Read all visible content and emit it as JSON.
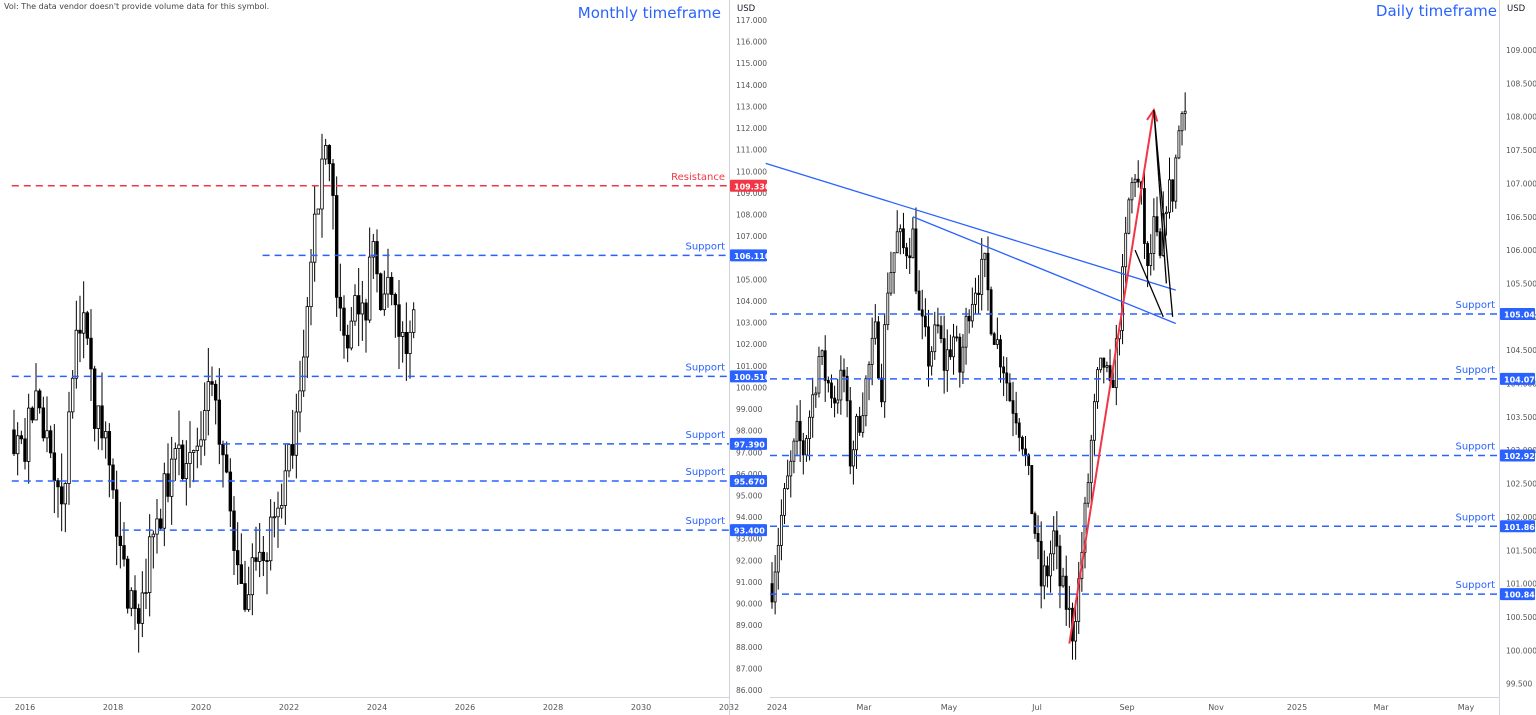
{
  "header": {
    "volume_note": "Vol: The data vendor doesn't provide volume data for this symbol.",
    "currency_label": "USD"
  },
  "colors": {
    "up": "#ffffff",
    "down": "#000000",
    "wick": "#000000",
    "support": "#2962ff",
    "resistance": "#f23645",
    "title": "#2962ff",
    "trendline": "#2962ff",
    "arrow": "#f23645",
    "wedge": "#000000"
  },
  "chart_data": [
    {
      "type": "candlestick",
      "title": "Monthly timeframe",
      "currency": "USD",
      "ylim": [
        85.5,
        117.5
      ],
      "xlim": [
        2015.7,
        2032
      ],
      "x_ticks": [
        "2016",
        "2018",
        "2020",
        "2022",
        "2024",
        "2026",
        "2028",
        "2030",
        "2032"
      ],
      "y_ticks": [
        "86.000",
        "87.000",
        "88.000",
        "89.000",
        "90.000",
        "91.000",
        "92.000",
        "93.000",
        "94.000",
        "95.000",
        "96.000",
        "97.000",
        "98.000",
        "99.000",
        "100.000",
        "101.000",
        "102.000",
        "103.000",
        "104.000",
        "105.000",
        "106.000",
        "107.000",
        "108.000",
        "109.000",
        "110.000",
        "111.000",
        "112.000",
        "113.000",
        "114.000",
        "115.000",
        "116.000",
        "117.000"
      ],
      "levels": [
        {
          "label": "Resistance",
          "value": 109.33,
          "tag": "109.330",
          "kind": "resistance",
          "start_x": 2015.7
        },
        {
          "label": "Support",
          "value": 106.11,
          "tag": "106.110",
          "kind": "support",
          "start_x": 2021.4
        },
        {
          "label": "Support",
          "value": 100.51,
          "tag": "100.510",
          "kind": "support",
          "start_x": 2015.7
        },
        {
          "label": "Support",
          "value": 97.39,
          "tag": "97.390",
          "kind": "support",
          "start_x": 2020.5
        },
        {
          "label": "Support",
          "value": 95.67,
          "tag": "95.670",
          "kind": "support",
          "start_x": 2015.7
        },
        {
          "label": "Support",
          "value": 93.4,
          "tag": "93.400",
          "kind": "support",
          "start_x": 2018.2
        }
      ],
      "path": [
        [
          2015.7,
          98.2
        ],
        [
          2016.0,
          97.2
        ],
        [
          2016.3,
          100.1
        ],
        [
          2016.6,
          95.8
        ],
        [
          2016.9,
          94.6
        ],
        [
          2017.1,
          101.5
        ],
        [
          2017.3,
          103.4
        ],
        [
          2017.6,
          98.5
        ],
        [
          2017.9,
          97.6
        ],
        [
          2018.1,
          92.9
        ],
        [
          2018.3,
          90.9
        ],
        [
          2018.5,
          88.7
        ],
        [
          2018.7,
          89.9
        ],
        [
          2018.9,
          93.1
        ],
        [
          2019.2,
          95.2
        ],
        [
          2019.5,
          97.0
        ],
        [
          2019.8,
          96.2
        ],
        [
          2020.0,
          97.8
        ],
        [
          2020.2,
          100.4
        ],
        [
          2020.5,
          96.6
        ],
        [
          2020.7,
          93.5
        ],
        [
          2020.9,
          92.0
        ],
        [
          2021.0,
          90.1
        ],
        [
          2021.2,
          92.4
        ],
        [
          2021.5,
          92.7
        ],
        [
          2021.7,
          93.6
        ],
        [
          2021.9,
          95.9
        ],
        [
          2022.1,
          97.2
        ],
        [
          2022.3,
          101.0
        ],
        [
          2022.5,
          105.4
        ],
        [
          2022.7,
          109.1
        ],
        [
          2022.8,
          113.0
        ],
        [
          2022.95,
          109.7
        ],
        [
          2023.1,
          104.3
        ],
        [
          2023.3,
          102.0
        ],
        [
          2023.5,
          104.5
        ],
        [
          2023.7,
          102.9
        ],
        [
          2023.9,
          106.3
        ],
        [
          2024.1,
          103.7
        ],
        [
          2024.3,
          104.9
        ],
        [
          2024.5,
          102.5
        ],
        [
          2024.7,
          100.9
        ],
        [
          2024.9,
          106.4
        ],
        [
          2025.05,
          108.3
        ]
      ],
      "candle_count": 110,
      "random_seed": 12
    },
    {
      "type": "candlestick",
      "title": "Daily timeframe",
      "currency": "USD",
      "ylim": [
        99.3,
        109.6
      ],
      "x_ticks": [
        "2024",
        "Mar",
        "May",
        "Jul",
        "Sep",
        "Nov",
        "2025",
        "Mar",
        "May"
      ],
      "y_ticks": [
        "99.500",
        "100.000",
        "100.500",
        "101.000",
        "101.500",
        "102.000",
        "102.500",
        "103.000",
        "103.500",
        "104.000",
        "104.500",
        "105.000",
        "105.500",
        "106.000",
        "106.500",
        "107.000",
        "107.500",
        "108.000",
        "108.500",
        "109.000"
      ],
      "levels": [
        {
          "label": "Support",
          "value": 105.042,
          "tag": "105.042",
          "kind": "support"
        },
        {
          "label": "Support",
          "value": 104.07,
          "tag": "104.070",
          "kind": "support"
        },
        {
          "label": "Support",
          "value": 102.92,
          "tag": "102.920",
          "kind": "support"
        },
        {
          "label": "Support",
          "value": 101.86,
          "tag": "101.860",
          "kind": "support"
        },
        {
          "label": "Support",
          "value": 100.843,
          "tag": "100.843",
          "kind": "support"
        }
      ],
      "path": [
        [
          0,
          101.0
        ],
        [
          3,
          102.0
        ],
        [
          5,
          102.5
        ],
        [
          8,
          103.2
        ],
        [
          10,
          103.0
        ],
        [
          13,
          103.8
        ],
        [
          15,
          104.4
        ],
        [
          18,
          104.0
        ],
        [
          20,
          103.8
        ],
        [
          23,
          104.1
        ],
        [
          25,
          102.9
        ],
        [
          28,
          103.5
        ],
        [
          30,
          104.0
        ],
        [
          33,
          104.7
        ],
        [
          35,
          104.0
        ],
        [
          37,
          105.5
        ],
        [
          40,
          106.2
        ],
        [
          42,
          106.0
        ],
        [
          45,
          106.2
        ],
        [
          47,
          105.0
        ],
        [
          50,
          104.4
        ],
        [
          53,
          104.8
        ],
        [
          55,
          104.3
        ],
        [
          58,
          104.7
        ],
        [
          60,
          104.2
        ],
        [
          63,
          105.2
        ],
        [
          65,
          105.5
        ],
        [
          68,
          105.7
        ],
        [
          70,
          105.0
        ],
        [
          72,
          104.6
        ],
        [
          74,
          104.3
        ],
        [
          76,
          103.8
        ],
        [
          78,
          103.6
        ],
        [
          80,
          103.2
        ],
        [
          82,
          102.5
        ],
        [
          84,
          101.8
        ],
        [
          86,
          101.0
        ],
        [
          88,
          101.2
        ],
        [
          90,
          101.7
        ],
        [
          92,
          101.0
        ],
        [
          94,
          100.7
        ],
        [
          96,
          100.3
        ],
        [
          98,
          101.0
        ],
        [
          100,
          102.0
        ],
        [
          102,
          103.1
        ],
        [
          104,
          104.0
        ],
        [
          106,
          104.3
        ],
        [
          108,
          103.8
        ],
        [
          110,
          104.5
        ],
        [
          112,
          105.5
        ],
        [
          114,
          106.7
        ],
        [
          116,
          107.2
        ],
        [
          118,
          106.7
        ],
        [
          120,
          105.6
        ],
        [
          122,
          106.3
        ],
        [
          124,
          105.8
        ],
        [
          126,
          106.8
        ],
        [
          128,
          106.9
        ],
        [
          130,
          107.8
        ],
        [
          131,
          108.3
        ],
        [
          132,
          108.1
        ]
      ],
      "day_count": 133,
      "random_seed": 7,
      "trendlines": [
        {
          "from": [
            -2,
            107.3
          ],
          "to": [
            129,
            105.4
          ]
        },
        {
          "from": [
            45,
            106.5
          ],
          "to": [
            129,
            104.9
          ]
        }
      ],
      "arrow": {
        "from": [
          95,
          100.1
        ],
        "to": [
          122,
          108.1
        ]
      },
      "wedge": [
        [
          122,
          108.1
        ],
        [
          128,
          105.0
        ],
        [
          126,
          105.5
        ],
        [
          122,
          108.1
        ],
        [
          116,
          106.0
        ],
        [
          125,
          105.0
        ]
      ]
    }
  ]
}
